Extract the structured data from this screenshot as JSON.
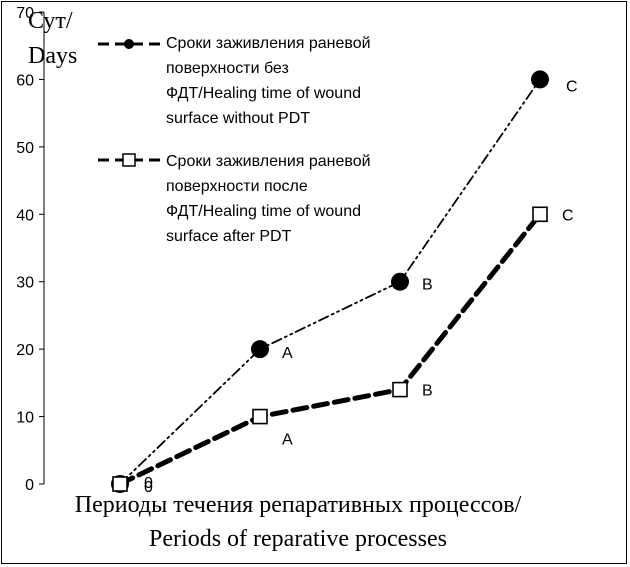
{
  "chart_data": {
    "type": "line",
    "categories": [
      "",
      "",
      "",
      ""
    ],
    "ylabel_lines": [
      "Сут/",
      "Days"
    ],
    "xlabel_lines": [
      "Периоды течения репаративных процессов/",
      "Periods of reparative processes"
    ],
    "ylim": [
      0,
      70
    ],
    "ytick_values": [
      0,
      10,
      20,
      30,
      40,
      50,
      60,
      70
    ],
    "ytick_labels": [
      "0",
      "10",
      "20",
      "30",
      "40",
      "50",
      "60",
      "70"
    ],
    "grid": false,
    "legend_position": "top-left",
    "series": [
      {
        "legend_lines": [
          "Сроки заживления раневой",
          "поверхности без",
          "ФДТ/Healing time of wound",
          "surface without PDT"
        ],
        "values": [
          0,
          20,
          30,
          60
        ],
        "point_labels": [
          "0",
          "A",
          "B",
          "C"
        ],
        "marker": "filled-circle",
        "line_style": "dash-dot-dot",
        "color": "#000000"
      },
      {
        "legend_lines": [
          "Сроки заживления раневой",
          "поверхности после",
          "ФДТ/Healing time of wound",
          "surface after PDT"
        ],
        "values": [
          0,
          10,
          14,
          40
        ],
        "point_labels": [
          "0",
          "A",
          "B",
          "C"
        ],
        "marker": "open-square",
        "line_style": "bold-dashed",
        "color": "#000000"
      }
    ]
  }
}
